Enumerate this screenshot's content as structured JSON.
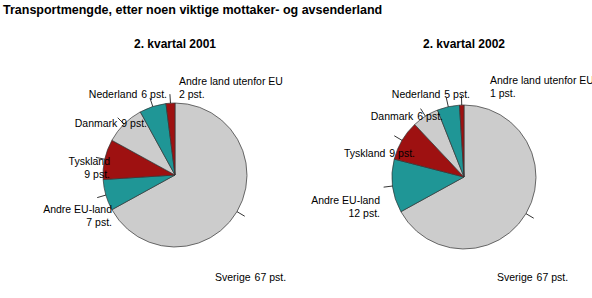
{
  "title": "Transportmengde, etter noen viktige mottaker- og avsenderland",
  "chart_data": [
    {
      "type": "pie",
      "title": "2. kvartal 2001",
      "categories": [
        "Sverige",
        "Andre EU-land",
        "Tyskland",
        "Danmark",
        "Nederland",
        "Andre land utenfor EU"
      ],
      "values": [
        67,
        7,
        9,
        9,
        6,
        2
      ],
      "value_labels": [
        "67 pst.",
        "7 pst.",
        "9 pst.",
        "9 pst.",
        "6 pst.",
        "2 pst."
      ],
      "colors": [
        "#cccccc",
        "#1f9696",
        "#9e1111",
        "#cccccc",
        "#1f9696",
        "#9e1111"
      ],
      "data_labels": true
    },
    {
      "type": "pie",
      "title": "2. kvartal 2002",
      "categories": [
        "Sverige",
        "Andre EU-land",
        "Tyskland",
        "Danmark",
        "Nederland",
        "Andre land utenfor EU"
      ],
      "values": [
        67,
        12,
        9,
        6,
        5,
        1
      ],
      "value_labels": [
        "67 pst.",
        "12 pst.",
        "9 pst.",
        "6 pst.",
        "5 pst.",
        "1 pst."
      ],
      "colors": [
        "#cccccc",
        "#1f9696",
        "#9e1111",
        "#cccccc",
        "#1f9696",
        "#9e1111"
      ],
      "data_labels": true
    }
  ]
}
